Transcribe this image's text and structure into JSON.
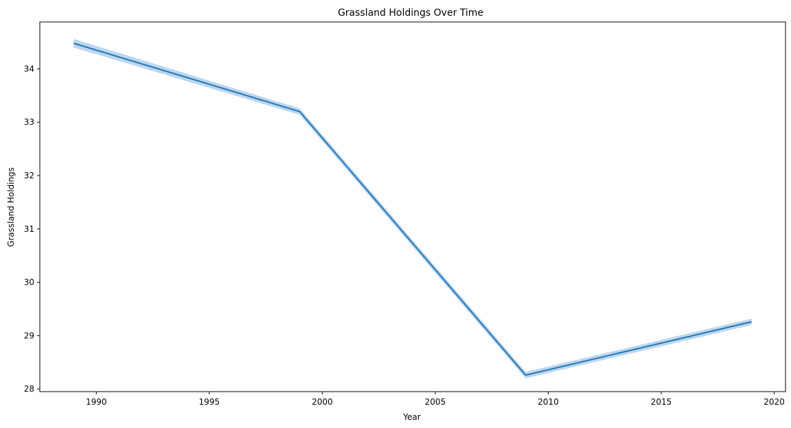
{
  "chart_data": {
    "type": "line",
    "title": "Grassland Holdings Over Time",
    "xlabel": "Year",
    "ylabel": "Grassland Holdings",
    "xlim": [
      1987.5,
      2020.5
    ],
    "ylim": [
      27.95,
      34.88
    ],
    "xticks": [
      1990,
      1995,
      2000,
      2005,
      2010,
      2015,
      2020
    ],
    "yticks": [
      28,
      29,
      30,
      31,
      32,
      33,
      34
    ],
    "grid": false,
    "colors": {
      "line": "#1f77b4",
      "band": "#a6c8e8"
    },
    "series": [
      {
        "x": [
          1989,
          1999,
          2009,
          2019
        ],
        "y": [
          34.48,
          33.2,
          28.26,
          29.26
        ],
        "band_lower": [
          34.4,
          33.14,
          28.2,
          29.2
        ],
        "band_upper": [
          34.56,
          33.26,
          28.32,
          29.32
        ]
      }
    ]
  }
}
